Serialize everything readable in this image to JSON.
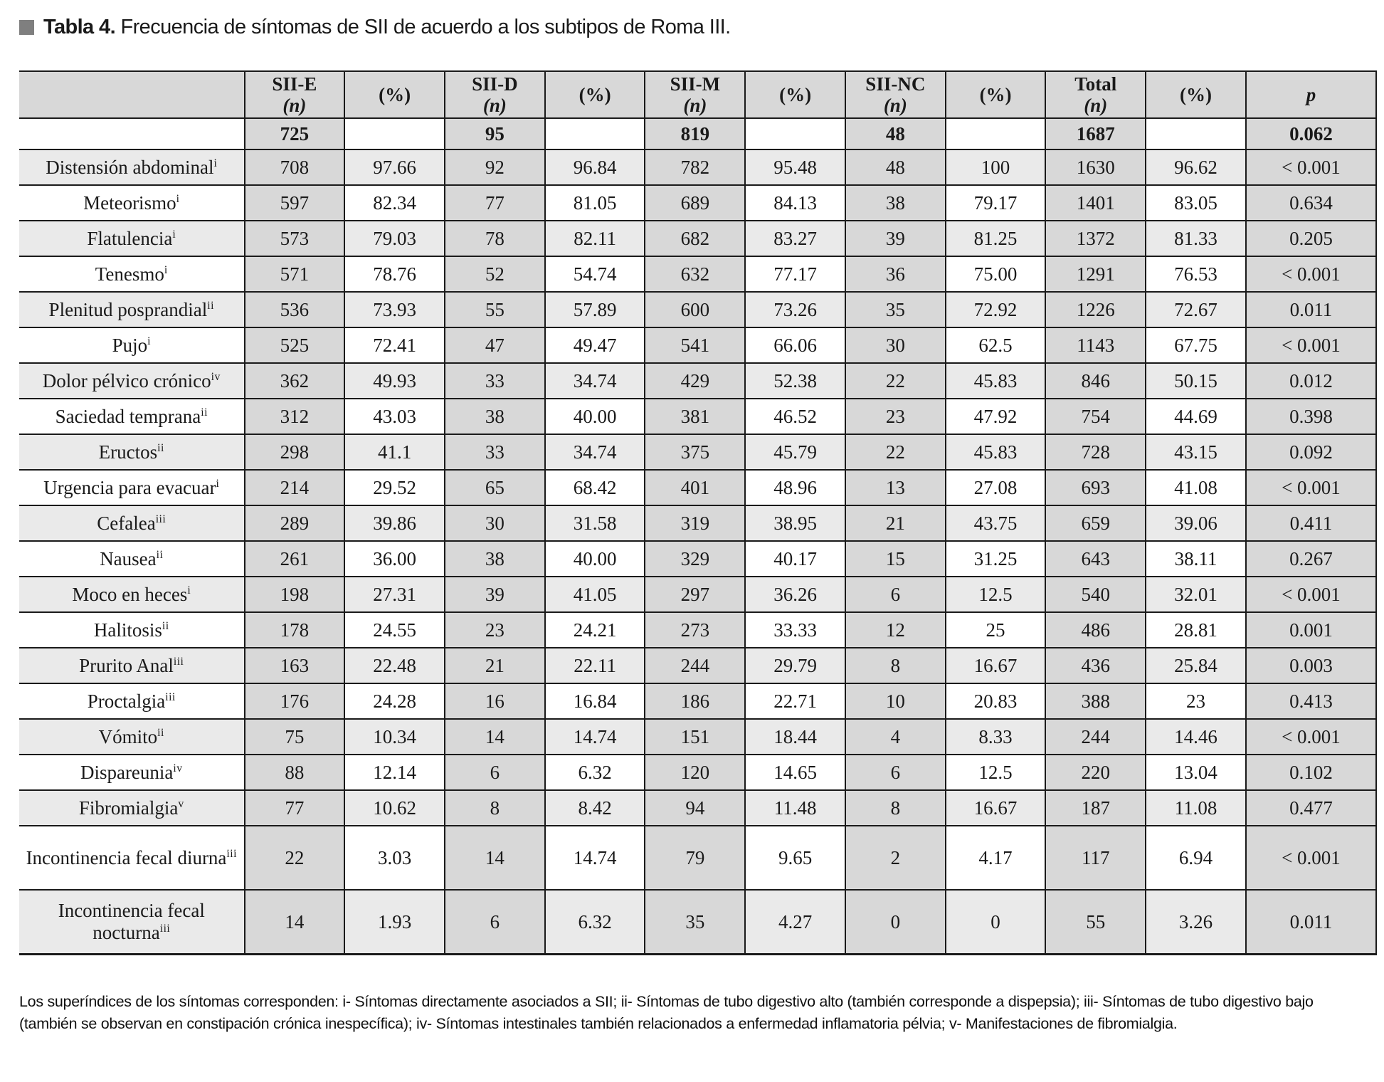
{
  "title": {
    "label": "Tabla 4.",
    "text": "Frecuencia de síntomas de SII de acuerdo a los subtipos de Roma III."
  },
  "table": {
    "columns": [
      {
        "name": "SII-E",
        "unit": "(n)"
      },
      {
        "name": "(%)",
        "unit": ""
      },
      {
        "name": "SII-D",
        "unit": "(n)"
      },
      {
        "name": "(%)",
        "unit": ""
      },
      {
        "name": "SII-M",
        "unit": "(n)"
      },
      {
        "name": "(%)",
        "unit": ""
      },
      {
        "name": "SII-NC",
        "unit": "(n)"
      },
      {
        "name": "(%)",
        "unit": ""
      },
      {
        "name": "Total",
        "unit": "(n)"
      },
      {
        "name": "(%)",
        "unit": ""
      },
      {
        "name": "p",
        "unit": ""
      }
    ],
    "n_row": [
      "725",
      "",
      "95",
      "",
      "819",
      "",
      "48",
      "",
      "1687",
      "",
      "0.062"
    ],
    "rows": [
      {
        "label": "Distensión abdominal",
        "sup": "i",
        "values": [
          "708",
          "97.66",
          "92",
          "96.84",
          "782",
          "95.48",
          "48",
          "100",
          "1630",
          "96.62",
          "< 0.001"
        ]
      },
      {
        "label": "Meteorismo",
        "sup": "i",
        "values": [
          "597",
          "82.34",
          "77",
          "81.05",
          "689",
          "84.13",
          "38",
          "79.17",
          "1401",
          "83.05",
          "0.634"
        ]
      },
      {
        "label": "Flatulencia",
        "sup": "i",
        "values": [
          "573",
          "79.03",
          "78",
          "82.11",
          "682",
          "83.27",
          "39",
          "81.25",
          "1372",
          "81.33",
          "0.205"
        ]
      },
      {
        "label": "Tenesmo",
        "sup": "i",
        "values": [
          "571",
          "78.76",
          "52",
          "54.74",
          "632",
          "77.17",
          "36",
          "75.00",
          "1291",
          "76.53",
          "< 0.001"
        ]
      },
      {
        "label": "Plenitud posprandial",
        "sup": "ii",
        "values": [
          "536",
          "73.93",
          "55",
          "57.89",
          "600",
          "73.26",
          "35",
          "72.92",
          "1226",
          "72.67",
          "0.011"
        ]
      },
      {
        "label": "Pujo",
        "sup": "i",
        "values": [
          "525",
          "72.41",
          "47",
          "49.47",
          "541",
          "66.06",
          "30",
          "62.5",
          "1143",
          "67.75",
          "< 0.001"
        ]
      },
      {
        "label": "Dolor pélvico crónico",
        "sup": "iv",
        "values": [
          "362",
          "49.93",
          "33",
          "34.74",
          "429",
          "52.38",
          "22",
          "45.83",
          "846",
          "50.15",
          "0.012"
        ]
      },
      {
        "label": "Saciedad temprana",
        "sup": "ii",
        "values": [
          "312",
          "43.03",
          "38",
          "40.00",
          "381",
          "46.52",
          "23",
          "47.92",
          "754",
          "44.69",
          "0.398"
        ]
      },
      {
        "label": "Eructos",
        "sup": "ii",
        "values": [
          "298",
          "41.1",
          "33",
          "34.74",
          "375",
          "45.79",
          "22",
          "45.83",
          "728",
          "43.15",
          "0.092"
        ]
      },
      {
        "label": "Urgencia para evacuar",
        "sup": "i",
        "values": [
          "214",
          "29.52",
          "65",
          "68.42",
          "401",
          "48.96",
          "13",
          "27.08",
          "693",
          "41.08",
          "< 0.001"
        ]
      },
      {
        "label": "Cefalea",
        "sup": "iii",
        "values": [
          "289",
          "39.86",
          "30",
          "31.58",
          "319",
          "38.95",
          "21",
          "43.75",
          "659",
          "39.06",
          "0.411"
        ]
      },
      {
        "label": "Nausea",
        "sup": "ii",
        "values": [
          "261",
          "36.00",
          "38",
          "40.00",
          "329",
          "40.17",
          "15",
          "31.25",
          "643",
          "38.11",
          "0.267"
        ]
      },
      {
        "label": "Moco en heces",
        "sup": "i",
        "values": [
          "198",
          "27.31",
          "39",
          "41.05",
          "297",
          "36.26",
          "6",
          "12.5",
          "540",
          "32.01",
          "< 0.001"
        ]
      },
      {
        "label": "Halitosis",
        "sup": "ii",
        "values": [
          "178",
          "24.55",
          "23",
          "24.21",
          "273",
          "33.33",
          "12",
          "25",
          "486",
          "28.81",
          "0.001"
        ]
      },
      {
        "label": "Prurito Anal",
        "sup": "iii",
        "values": [
          "163",
          "22.48",
          "21",
          "22.11",
          "244",
          "29.79",
          "8",
          "16.67",
          "436",
          "25.84",
          "0.003"
        ]
      },
      {
        "label": "Proctalgia",
        "sup": "iii",
        "values": [
          "176",
          "24.28",
          "16",
          "16.84",
          "186",
          "22.71",
          "10",
          "20.83",
          "388",
          "23",
          "0.413"
        ]
      },
      {
        "label": "Vómito",
        "sup": "ii",
        "values": [
          "75",
          "10.34",
          "14",
          "14.74",
          "151",
          "18.44",
          "4",
          "8.33",
          "244",
          "14.46",
          "< 0.001"
        ]
      },
      {
        "label": "Dispareunia",
        "sup": "iv",
        "values": [
          "88",
          "12.14",
          "6",
          "6.32",
          "120",
          "14.65",
          "6",
          "12.5",
          "220",
          "13.04",
          "0.102"
        ]
      },
      {
        "label": "Fibromialgia",
        "sup": "v",
        "values": [
          "77",
          "10.62",
          "8",
          "8.42",
          "94",
          "11.48",
          "8",
          "16.67",
          "187",
          "11.08",
          "0.477"
        ]
      },
      {
        "label": "Incontinencia fecal diurna",
        "sup": "iii",
        "values": [
          "22",
          "3.03",
          "14",
          "14.74",
          "79",
          "9.65",
          "2",
          "4.17",
          "117",
          "6.94",
          "< 0.001"
        ]
      },
      {
        "label": "Incontinencia fecal nocturna",
        "sup": "iii",
        "values": [
          "14",
          "1.93",
          "6",
          "6.32",
          "35",
          "4.27",
          "0",
          "0",
          "55",
          "3.26",
          "0.011"
        ]
      }
    ],
    "tall_rows": [
      19,
      20
    ]
  },
  "footnote": "Los superíndices de los síntomas corresponden: i- Síntomas directamente asociados a SII; ii- Síntomas de tubo digestivo alto (también corresponde a dispepsia); iii- Síntomas de tubo digestivo bajo (también se observan en constipación crónica inespecífica); iv- Síntomas intestinales también relacionados a enfermedad inflamatoria pélvia; v- Manifestaciones de fibromialgia.",
  "colors": {
    "header_shade": "#d8d8d8",
    "row_shade": "#eaeaea",
    "marker_square": "#7f7f7f",
    "border": "#1a1a1a"
  }
}
